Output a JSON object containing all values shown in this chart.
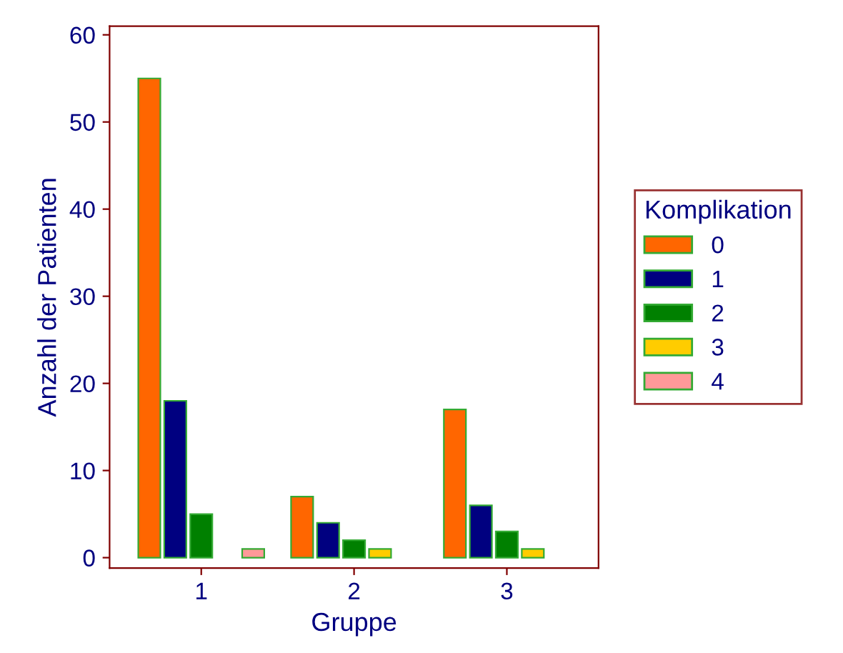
{
  "chart_data": {
    "type": "bar",
    "xlabel": "Gruppe",
    "ylabel": "Anzahl der Patienten",
    "legend_title": "Komplikation",
    "categories": [
      "1",
      "2",
      "3"
    ],
    "series": [
      {
        "name": "0",
        "color": "#ff6600",
        "values": [
          55,
          7,
          17
        ]
      },
      {
        "name": "1",
        "color": "#000080",
        "values": [
          18,
          4,
          6
        ]
      },
      {
        "name": "2",
        "color": "#008000",
        "values": [
          5,
          2,
          3
        ]
      },
      {
        "name": "3",
        "color": "#ffcc00",
        "values": [
          null,
          1,
          1
        ]
      },
      {
        "name": "4",
        "color": "#ff9999",
        "values": [
          1,
          null,
          null
        ]
      }
    ],
    "ylim": [
      -1.2,
      61
    ],
    "yticks": [
      0,
      10,
      20,
      30,
      40,
      50,
      60
    ],
    "grid": false,
    "legend": "right"
  }
}
